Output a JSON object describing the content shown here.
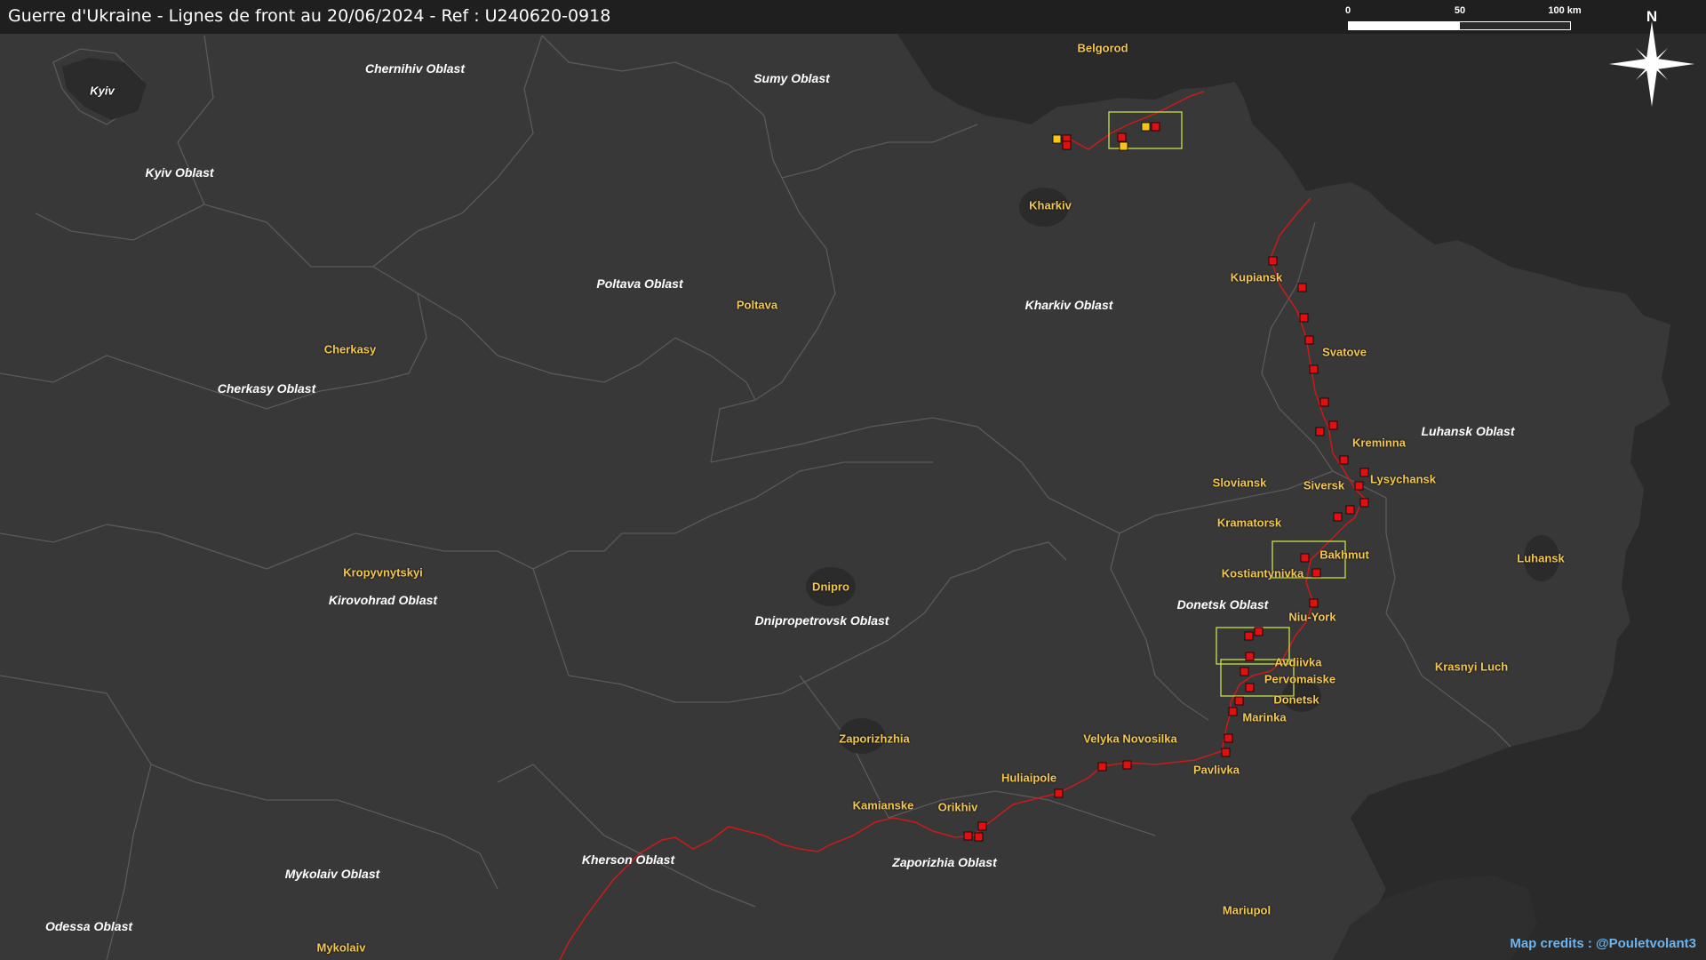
{
  "title": "Guerre d'Ukraine - Lignes de front au 20/06/2024 - Ref : U240620-0918",
  "credits": "Map credits : @Pouletvolant3",
  "scale_bar": {
    "ticks": [
      "0",
      "50",
      "100 km"
    ]
  },
  "north_label": "N",
  "colors": {
    "background_ukraine": "#383838",
    "background_russia": "#2a2a2a",
    "border": "#5a5a5a",
    "front_line": "#cc1a1a",
    "marker_red": "#e01010",
    "marker_yellow": "#f5c518",
    "highlight_box": "#c8e04a",
    "city_label": "#f3c74f",
    "oblast_label": "#ffffff",
    "credits": "#6cb4ee"
  },
  "oblast_labels": [
    "Chernihiv Oblast",
    "Sumy Oblast",
    "Kyiv Oblast",
    "Poltava Oblast",
    "Kharkiv Oblast",
    "Cherkasy Oblast",
    "Luhansk Oblast",
    "Donetsk Oblast",
    "Kirovohrad Oblast",
    "Dnipropetrovsk Oblast",
    "Kherson Oblast",
    "Zaporizhia Oblast",
    "Mykolaiv Oblast",
    "Odessa Oblast"
  ],
  "city_labels": [
    "Kyiv",
    "Belgorod",
    "Kharkiv",
    "Poltava",
    "Cherkasy",
    "Kupiansk",
    "Svatove",
    "Kreminna",
    "Sloviansk",
    "Siversk",
    "Lysychansk",
    "Kramatorsk",
    "Bakhmut",
    "Kostiantynivka",
    "Luhansk",
    "Niu-York",
    "Avdiivka",
    "Pervomaiske",
    "Donetsk",
    "Marinka",
    "Krasnyi Luch",
    "Kropyvnytskyi",
    "Dnipro",
    "Zaporizhzhia",
    "Velyka Novosilka",
    "Huliaipole",
    "Pavlivka",
    "Kamianske",
    "Orikhiv",
    "Mariupol",
    "Mykolaiv"
  ]
}
